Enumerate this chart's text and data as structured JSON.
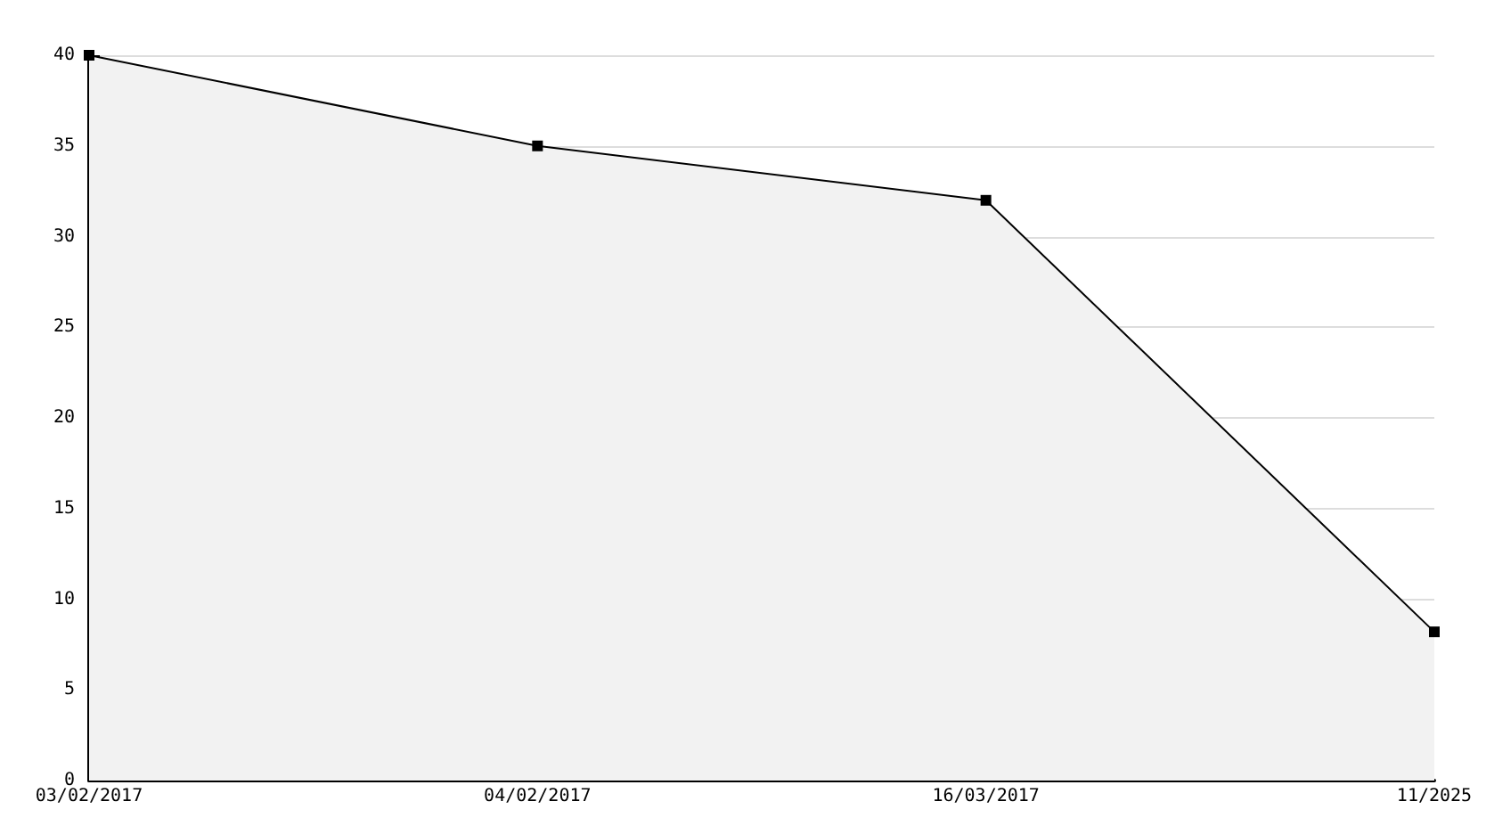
{
  "chart_data": {
    "type": "area",
    "categories": [
      "03/02/2017",
      "04/02/2017",
      "16/03/2017",
      "11/2025"
    ],
    "series": [
      {
        "color": "#000000",
        "values": [
          40,
          35,
          32,
          8.2
        ]
      }
    ],
    "ylim": [
      0,
      40
    ],
    "yticks": [
      0,
      5,
      10,
      15,
      20,
      25,
      30,
      35,
      40
    ],
    "grid": "y",
    "marker": "square",
    "line_style": "solid"
  }
}
